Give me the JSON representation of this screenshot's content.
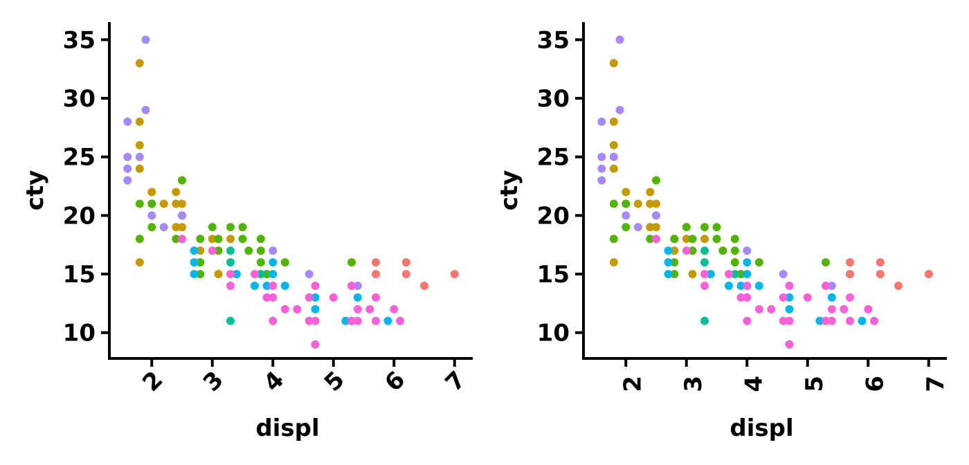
{
  "chart_data": [
    {
      "type": "scatter",
      "title": "",
      "xlabel": "displ",
      "ylabel": "cty",
      "xlim": [
        1.3,
        7.3
      ],
      "ylim": [
        7.8,
        36.5
      ],
      "xticks": [
        "2",
        "3",
        "4",
        "5",
        "6",
        "7"
      ],
      "yticks": [
        "10",
        "15",
        "20",
        "25",
        "30",
        "35"
      ],
      "xtick_rotation": "45",
      "grid": false,
      "legend": "none",
      "color_groups": {
        "red": "#F8766D",
        "gold": "#C49A00",
        "green": "#53B400",
        "teal": "#00C094",
        "blue": "#00B6EB",
        "purple": "#A58AFF",
        "pink": "#FB61D7"
      },
      "series": [
        {
          "color": "#F8766D",
          "points": [
            [
              5.7,
              16
            ],
            [
              5.7,
              15
            ],
            [
              6.2,
              16
            ],
            [
              6.2,
              15
            ],
            [
              7.0,
              15
            ],
            [
              6.5,
              14
            ]
          ]
        },
        {
          "color": "#C49A00",
          "points": [
            [
              1.8,
              33
            ],
            [
              1.8,
              28
            ],
            [
              1.8,
              26
            ],
            [
              1.8,
              24
            ],
            [
              1.8,
              16
            ],
            [
              2.0,
              22
            ],
            [
              2.0,
              21
            ],
            [
              2.2,
              21
            ],
            [
              2.4,
              22
            ],
            [
              2.4,
              21
            ],
            [
              2.4,
              19
            ],
            [
              2.5,
              21
            ],
            [
              2.5,
              19
            ],
            [
              2.5,
              20
            ],
            [
              2.8,
              17
            ],
            [
              3.0,
              18
            ],
            [
              3.1,
              15
            ],
            [
              3.3,
              18
            ]
          ]
        },
        {
          "color": "#53B400",
          "points": [
            [
              1.8,
              21
            ],
            [
              1.8,
              18
            ],
            [
              2.0,
              21
            ],
            [
              2.0,
              19
            ],
            [
              2.4,
              18
            ],
            [
              2.5,
              23
            ],
            [
              2.8,
              18
            ],
            [
              2.8,
              16
            ],
            [
              2.8,
              15
            ],
            [
              3.0,
              19
            ],
            [
              3.1,
              18
            ],
            [
              3.1,
              17
            ],
            [
              3.3,
              19
            ],
            [
              3.5,
              19
            ],
            [
              3.5,
              18
            ],
            [
              3.6,
              17
            ],
            [
              3.8,
              18
            ],
            [
              3.8,
              17
            ],
            [
              3.8,
              16
            ],
            [
              3.9,
              15
            ],
            [
              4.2,
              16
            ],
            [
              5.3,
              16
            ]
          ]
        },
        {
          "color": "#00C094",
          "points": [
            [
              3.3,
              17
            ],
            [
              3.3,
              16
            ],
            [
              3.3,
              11
            ],
            [
              3.8,
              15
            ]
          ]
        },
        {
          "color": "#00B6EB",
          "points": [
            [
              2.7,
              17
            ],
            [
              2.7,
              16
            ],
            [
              2.7,
              15
            ],
            [
              3.4,
              15
            ],
            [
              3.7,
              14
            ],
            [
              3.9,
              14
            ],
            [
              4.0,
              16
            ],
            [
              4.0,
              15
            ],
            [
              4.2,
              14
            ],
            [
              4.7,
              13
            ],
            [
              4.7,
              12
            ],
            [
              4.7,
              9
            ],
            [
              5.2,
              11
            ],
            [
              5.4,
              13
            ],
            [
              5.9,
              11
            ]
          ]
        },
        {
          "color": "#A58AFF",
          "points": [
            [
              1.6,
              28
            ],
            [
              1.6,
              25
            ],
            [
              1.6,
              24
            ],
            [
              1.6,
              23
            ],
            [
              1.8,
              25
            ],
            [
              1.9,
              35
            ],
            [
              1.9,
              29
            ],
            [
              2.0,
              20
            ],
            [
              2.2,
              19
            ],
            [
              2.5,
              20
            ],
            [
              4.0,
              17
            ],
            [
              4.6,
              15
            ],
            [
              5.4,
              14
            ]
          ]
        },
        {
          "color": "#FB61D7",
          "points": [
            [
              2.5,
              18
            ],
            [
              3.0,
              17
            ],
            [
              3.3,
              15
            ],
            [
              3.3,
              14
            ],
            [
              3.7,
              15
            ],
            [
              3.9,
              13
            ],
            [
              4.0,
              14
            ],
            [
              4.0,
              13
            ],
            [
              4.0,
              11
            ],
            [
              4.2,
              12
            ],
            [
              4.4,
              12
            ],
            [
              4.6,
              13
            ],
            [
              4.6,
              11
            ],
            [
              4.7,
              14
            ],
            [
              4.7,
              11
            ],
            [
              4.7,
              9
            ],
            [
              5.0,
              13
            ],
            [
              5.3,
              14
            ],
            [
              5.3,
              11
            ],
            [
              5.4,
              12
            ],
            [
              5.4,
              11
            ],
            [
              5.6,
              12
            ],
            [
              5.7,
              13
            ],
            [
              5.7,
              11
            ],
            [
              6.0,
              12
            ],
            [
              6.1,
              11
            ]
          ]
        }
      ]
    },
    {
      "type": "scatter",
      "title": "",
      "xlabel": "displ",
      "ylabel": "cty",
      "xlim": [
        1.3,
        7.3
      ],
      "ylim": [
        7.8,
        36.5
      ],
      "xticks": [
        "2",
        "3",
        "4",
        "5",
        "6",
        "7"
      ],
      "yticks": [
        "10",
        "15",
        "20",
        "25",
        "30",
        "35"
      ],
      "xtick_rotation": "90",
      "grid": false,
      "legend": "none",
      "color_groups": {
        "red": "#F8766D",
        "gold": "#C49A00",
        "green": "#53B400",
        "teal": "#00C094",
        "blue": "#00B6EB",
        "purple": "#A58AFF",
        "pink": "#FB61D7"
      },
      "series": [
        {
          "color": "#F8766D",
          "points": [
            [
              5.7,
              16
            ],
            [
              5.7,
              15
            ],
            [
              6.2,
              16
            ],
            [
              6.2,
              15
            ],
            [
              7.0,
              15
            ],
            [
              6.5,
              14
            ]
          ]
        },
        {
          "color": "#C49A00",
          "points": [
            [
              1.8,
              33
            ],
            [
              1.8,
              28
            ],
            [
              1.8,
              26
            ],
            [
              1.8,
              24
            ],
            [
              1.8,
              16
            ],
            [
              2.0,
              22
            ],
            [
              2.0,
              21
            ],
            [
              2.2,
              21
            ],
            [
              2.4,
              22
            ],
            [
              2.4,
              21
            ],
            [
              2.4,
              19
            ],
            [
              2.5,
              21
            ],
            [
              2.5,
              19
            ],
            [
              2.5,
              20
            ],
            [
              2.8,
              17
            ],
            [
              3.0,
              18
            ],
            [
              3.1,
              15
            ],
            [
              3.3,
              18
            ]
          ]
        },
        {
          "color": "#53B400",
          "points": [
            [
              1.8,
              21
            ],
            [
              1.8,
              18
            ],
            [
              2.0,
              21
            ],
            [
              2.0,
              19
            ],
            [
              2.4,
              18
            ],
            [
              2.5,
              23
            ],
            [
              2.8,
              18
            ],
            [
              2.8,
              16
            ],
            [
              2.8,
              15
            ],
            [
              3.0,
              19
            ],
            [
              3.1,
              18
            ],
            [
              3.1,
              17
            ],
            [
              3.3,
              19
            ],
            [
              3.5,
              19
            ],
            [
              3.5,
              18
            ],
            [
              3.6,
              17
            ],
            [
              3.8,
              18
            ],
            [
              3.8,
              17
            ],
            [
              3.8,
              16
            ],
            [
              3.9,
              15
            ],
            [
              4.2,
              16
            ],
            [
              5.3,
              16
            ]
          ]
        },
        {
          "color": "#00C094",
          "points": [
            [
              3.3,
              17
            ],
            [
              3.3,
              16
            ],
            [
              3.3,
              11
            ],
            [
              3.8,
              15
            ]
          ]
        },
        {
          "color": "#00B6EB",
          "points": [
            [
              2.7,
              17
            ],
            [
              2.7,
              16
            ],
            [
              2.7,
              15
            ],
            [
              3.4,
              15
            ],
            [
              3.7,
              14
            ],
            [
              3.9,
              14
            ],
            [
              4.0,
              16
            ],
            [
              4.0,
              15
            ],
            [
              4.2,
              14
            ],
            [
              4.7,
              13
            ],
            [
              4.7,
              12
            ],
            [
              4.7,
              9
            ],
            [
              5.2,
              11
            ],
            [
              5.4,
              13
            ],
            [
              5.9,
              11
            ]
          ]
        },
        {
          "color": "#A58AFF",
          "points": [
            [
              1.6,
              28
            ],
            [
              1.6,
              25
            ],
            [
              1.6,
              24
            ],
            [
              1.6,
              23
            ],
            [
              1.8,
              25
            ],
            [
              1.9,
              35
            ],
            [
              1.9,
              29
            ],
            [
              2.0,
              20
            ],
            [
              2.2,
              19
            ],
            [
              2.5,
              20
            ],
            [
              4.0,
              17
            ],
            [
              4.6,
              15
            ],
            [
              5.4,
              14
            ]
          ]
        },
        {
          "color": "#FB61D7",
          "points": [
            [
              2.5,
              18
            ],
            [
              3.0,
              17
            ],
            [
              3.3,
              15
            ],
            [
              3.3,
              14
            ],
            [
              3.7,
              15
            ],
            [
              3.9,
              13
            ],
            [
              4.0,
              14
            ],
            [
              4.0,
              13
            ],
            [
              4.0,
              11
            ],
            [
              4.2,
              12
            ],
            [
              4.4,
              12
            ],
            [
              4.6,
              13
            ],
            [
              4.6,
              11
            ],
            [
              4.7,
              14
            ],
            [
              4.7,
              11
            ],
            [
              4.7,
              9
            ],
            [
              5.0,
              13
            ],
            [
              5.3,
              14
            ],
            [
              5.3,
              11
            ],
            [
              5.4,
              12
            ],
            [
              5.4,
              11
            ],
            [
              5.6,
              12
            ],
            [
              5.7,
              13
            ],
            [
              5.7,
              11
            ],
            [
              6.0,
              12
            ],
            [
              6.1,
              11
            ]
          ]
        }
      ]
    }
  ]
}
